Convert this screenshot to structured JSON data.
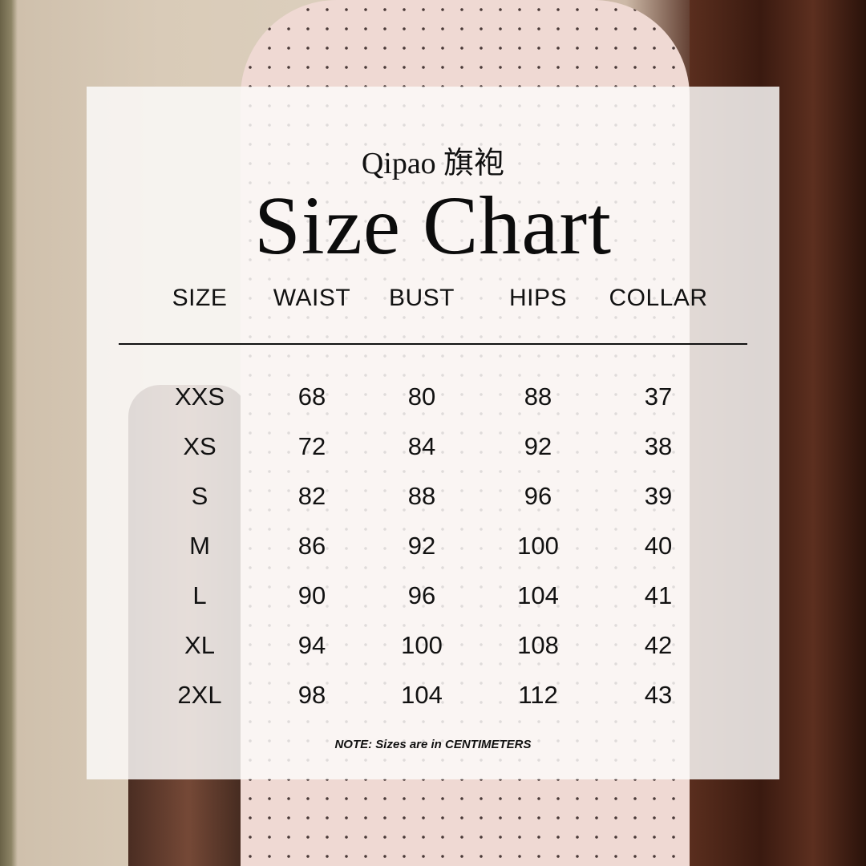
{
  "subtitle": "Qipao 旗袍",
  "title": "Size Chart",
  "columns": [
    "SIZE",
    "WAIST",
    "BUST",
    "HIPS",
    "COLLAR"
  ],
  "rows": [
    [
      "XXS",
      "68",
      "80",
      "88",
      "37"
    ],
    [
      "XS",
      "72",
      "84",
      "92",
      "38"
    ],
    [
      "S",
      "82",
      "88",
      "96",
      "39"
    ],
    [
      "M",
      "86",
      "92",
      "100",
      "40"
    ],
    [
      "L",
      "90",
      "96",
      "104",
      "41"
    ],
    [
      "XL",
      "94",
      "100",
      "108",
      "42"
    ],
    [
      "2XL",
      "98",
      "104",
      "112",
      "43"
    ]
  ],
  "note": "NOTE: Sizes are in CENTIMETERS"
}
